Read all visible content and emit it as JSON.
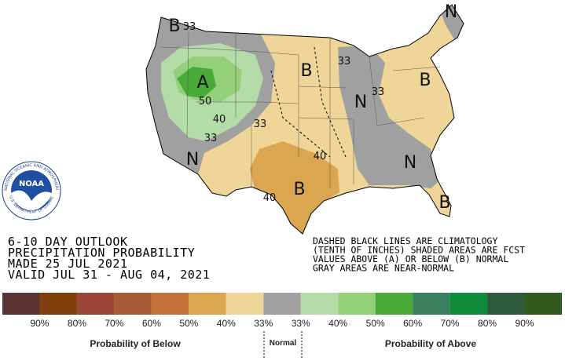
{
  "logo": {
    "name": "NOAA",
    "ring_top": "NATIONAL OCEANIC AND ATMOSPHERIC ADMINISTRATION",
    "ring_bottom": "U.S. DEPARTMENT OF COMMERCE"
  },
  "map_labels": [
    "B",
    "33",
    "A",
    "50",
    "40",
    "33",
    "33",
    "N",
    "B",
    "33",
    "N",
    "33",
    "B",
    "N",
    "40",
    "B",
    "40",
    "N",
    "B"
  ],
  "title_lines": [
    "6-10 DAY OUTLOOK",
    "PRECIPITATION PROBABILITY",
    "MADE  25 JUL 2021",
    "VALID  JUL 31 - AUG 04, 2021"
  ],
  "notes": [
    "DASHED BLACK LINES ARE CLIMATOLOGY",
    "(TENTH OF INCHES) SHADED AREAS ARE FCST",
    "VALUES ABOVE (A) OR BELOW (B) NORMAL",
    "GRAY AREAS ARE NEAR-NORMAL"
  ],
  "legend": {
    "colors": [
      "#5a3232",
      "#7e3f0a",
      "#9c4637",
      "#a85a35",
      "#c27036",
      "#dba650",
      "#efd598",
      "#a0a0a0",
      "#b4dca8",
      "#94cf79",
      "#4aaa38",
      "#3a8060",
      "#0f8c3a",
      "#2d5a3a",
      "#2f5a1b"
    ],
    "labels": [
      "90%",
      "80%",
      "70%",
      "60%",
      "50%",
      "40%",
      "33%",
      "33%",
      "40%",
      "50%",
      "60%",
      "70%",
      "80%",
      "90%"
    ],
    "below_title": "Probability of Below",
    "normal_title": "Normal",
    "above_title": "Probability of Above"
  }
}
